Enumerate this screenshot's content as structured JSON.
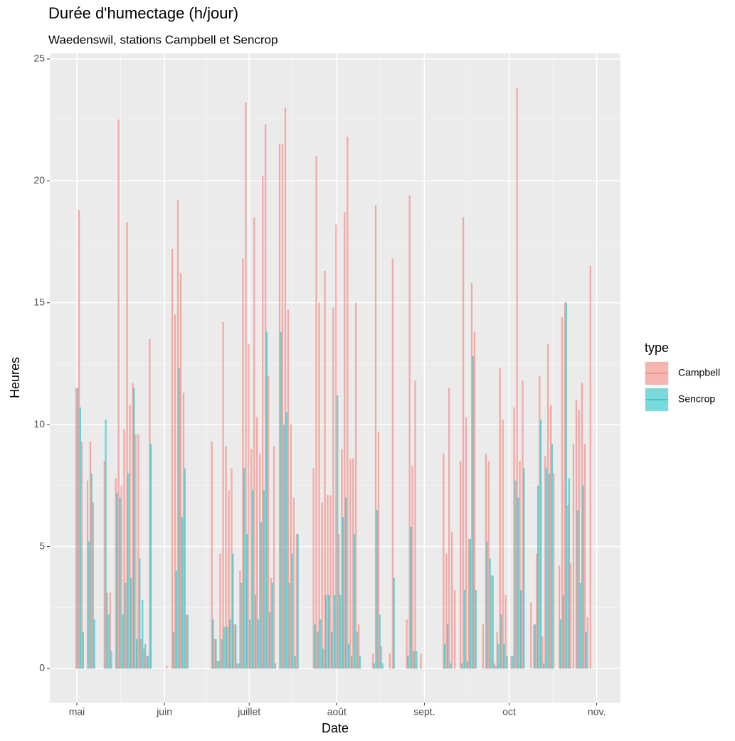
{
  "chart_data": {
    "type": "bar",
    "title": "Durée d'humectage (h/jour)",
    "subtitle": "Waedenswil, stations Campbell et Sencrop",
    "x_label": "Date",
    "y_label": "Heures",
    "legend_title": "type",
    "legend_position": "right",
    "grid": true,
    "xlim": [
      -9.57,
      192.4
    ],
    "ylim": [
      -1.4,
      25.23
    ],
    "xticks": [
      {
        "value": 0,
        "label": "mai"
      },
      {
        "value": 31,
        "label": "juin"
      },
      {
        "value": 61,
        "label": "juillet"
      },
      {
        "value": 92,
        "label": "août"
      },
      {
        "value": 123,
        "label": "sept."
      },
      {
        "value": 153,
        "label": "oct"
      },
      {
        "value": 184,
        "label": "nov."
      }
    ],
    "yticks": [
      0,
      5,
      10,
      15,
      20,
      25
    ],
    "x": [
      0,
      1,
      2,
      4,
      5,
      6,
      10,
      11,
      12,
      14,
      15,
      16,
      17,
      18,
      19,
      20,
      21,
      22,
      23,
      24,
      25,
      26,
      32,
      34,
      35,
      36,
      37,
      38,
      39,
      48,
      49,
      50,
      51,
      52,
      53,
      54,
      55,
      56,
      57,
      58,
      59,
      60,
      61,
      62,
      63,
      64,
      65,
      66,
      67,
      68,
      69,
      70,
      72,
      73,
      74,
      75,
      76,
      77,
      78,
      84,
      85,
      86,
      87,
      88,
      89,
      90,
      91,
      92,
      93,
      94,
      95,
      96,
      97,
      98,
      99,
      100,
      105,
      106,
      107,
      108,
      111,
      112,
      117,
      118,
      119,
      120,
      122,
      130,
      131,
      132,
      133,
      134,
      136,
      137,
      138,
      139,
      140,
      141,
      144,
      145,
      146,
      147,
      148,
      149,
      150,
      151,
      152,
      154,
      155,
      156,
      157,
      158,
      161,
      162,
      163,
      164,
      165,
      166,
      167,
      168,
      169,
      171,
      172,
      173,
      174,
      175,
      176,
      177,
      178,
      179,
      180,
      181,
      182
    ],
    "series": [
      {
        "name": "Campbell",
        "color": "#F8766D",
        "values": [
          11.5,
          18.8,
          9.3,
          7.7,
          9.3,
          6.8,
          8.5,
          3.1,
          3.1,
          7.8,
          22.5,
          7.5,
          9.8,
          18.3,
          10.8,
          11.7,
          9.6,
          9.6,
          1.2,
          0.8,
          0.5,
          13.5,
          0.1,
          17.2,
          14.5,
          19.2,
          16.2,
          11.3,
          2.2,
          9.3,
          1.2,
          0.3,
          4.7,
          14.2,
          9.1,
          7.3,
          8.2,
          1.8,
          0.2,
          4.0,
          16.8,
          23.2,
          13.3,
          9.0,
          18.5,
          10.3,
          8.8,
          20.2,
          22.3,
          12.0,
          3.7,
          9.1,
          21.5,
          21.5,
          23.0,
          14.7,
          10.0,
          7.0,
          5.5,
          8.2,
          21.0,
          15.0,
          6.8,
          16.3,
          7.1,
          7.1,
          14.8,
          18.2,
          5.5,
          9.0,
          18.7,
          21.8,
          8.6,
          8.6,
          15.0,
          1.8,
          0.6,
          19.0,
          9.7,
          0.9,
          0.6,
          16.8,
          2.0,
          19.4,
          8.3,
          11.8,
          0.6,
          8.8,
          4.7,
          11.5,
          5.6,
          3.2,
          8.5,
          18.5,
          10.3,
          5.3,
          15.8,
          13.8,
          1.8,
          8.8,
          8.5,
          3.8,
          0.2,
          1.5,
          12.3,
          10.2,
          3.0,
          0.5,
          10.7,
          23.8,
          8.5,
          11.8,
          2.7,
          1.8,
          4.7,
          12.0,
          1.3,
          8.7,
          13.3,
          10.8,
          8.0,
          4.2,
          14.4,
          15.0,
          6.7,
          4.3,
          9.2,
          11.0,
          10.6,
          11.7,
          9.2,
          2.1,
          16.5
        ]
      },
      {
        "name": "Sencrop",
        "color": "#00BFC4",
        "values": [
          11.5,
          10.7,
          1.5,
          5.2,
          8.0,
          2.0,
          10.2,
          2.2,
          0.7,
          7.2,
          7.0,
          2.2,
          3.5,
          8.0,
          3.7,
          11.5,
          1.2,
          4.5,
          2.8,
          1.0,
          0.5,
          9.2,
          0,
          1.5,
          4.0,
          12.3,
          6.2,
          8.2,
          2.2,
          2.0,
          1.2,
          0.3,
          1.2,
          1.7,
          1.7,
          2.0,
          4.7,
          1.8,
          0.2,
          3.5,
          8.2,
          5.5,
          2.0,
          7.3,
          3.0,
          2.0,
          6.0,
          7.3,
          13.8,
          2.3,
          3.5,
          0.2,
          13.8,
          10.0,
          10.5,
          3.5,
          4.7,
          0.5,
          5.5,
          1.8,
          1.5,
          2.0,
          0.8,
          3.0,
          3.0,
          1.5,
          3.0,
          11.2,
          3.0,
          6.2,
          7.0,
          1.0,
          0.5,
          5.5,
          1.5,
          0.5,
          0.2,
          6.5,
          2.2,
          0.2,
          0,
          3.7,
          0.5,
          5.8,
          0.7,
          0.7,
          0,
          1.0,
          1.8,
          0.2,
          0,
          0,
          0.2,
          3.2,
          0.3,
          5.3,
          12.8,
          3.2,
          0,
          5.2,
          4.5,
          3.8,
          0.1,
          1.0,
          2.2,
          1.0,
          0.5,
          0.5,
          7.7,
          7.0,
          3.2,
          8.2,
          0,
          1.8,
          7.5,
          10.2,
          0.2,
          8.2,
          8.0,
          9.2,
          0,
          2.0,
          3.0,
          15.0,
          7.8,
          0,
          0,
          6.5,
          3.5,
          7.5,
          1.5,
          0,
          0
        ]
      }
    ]
  }
}
